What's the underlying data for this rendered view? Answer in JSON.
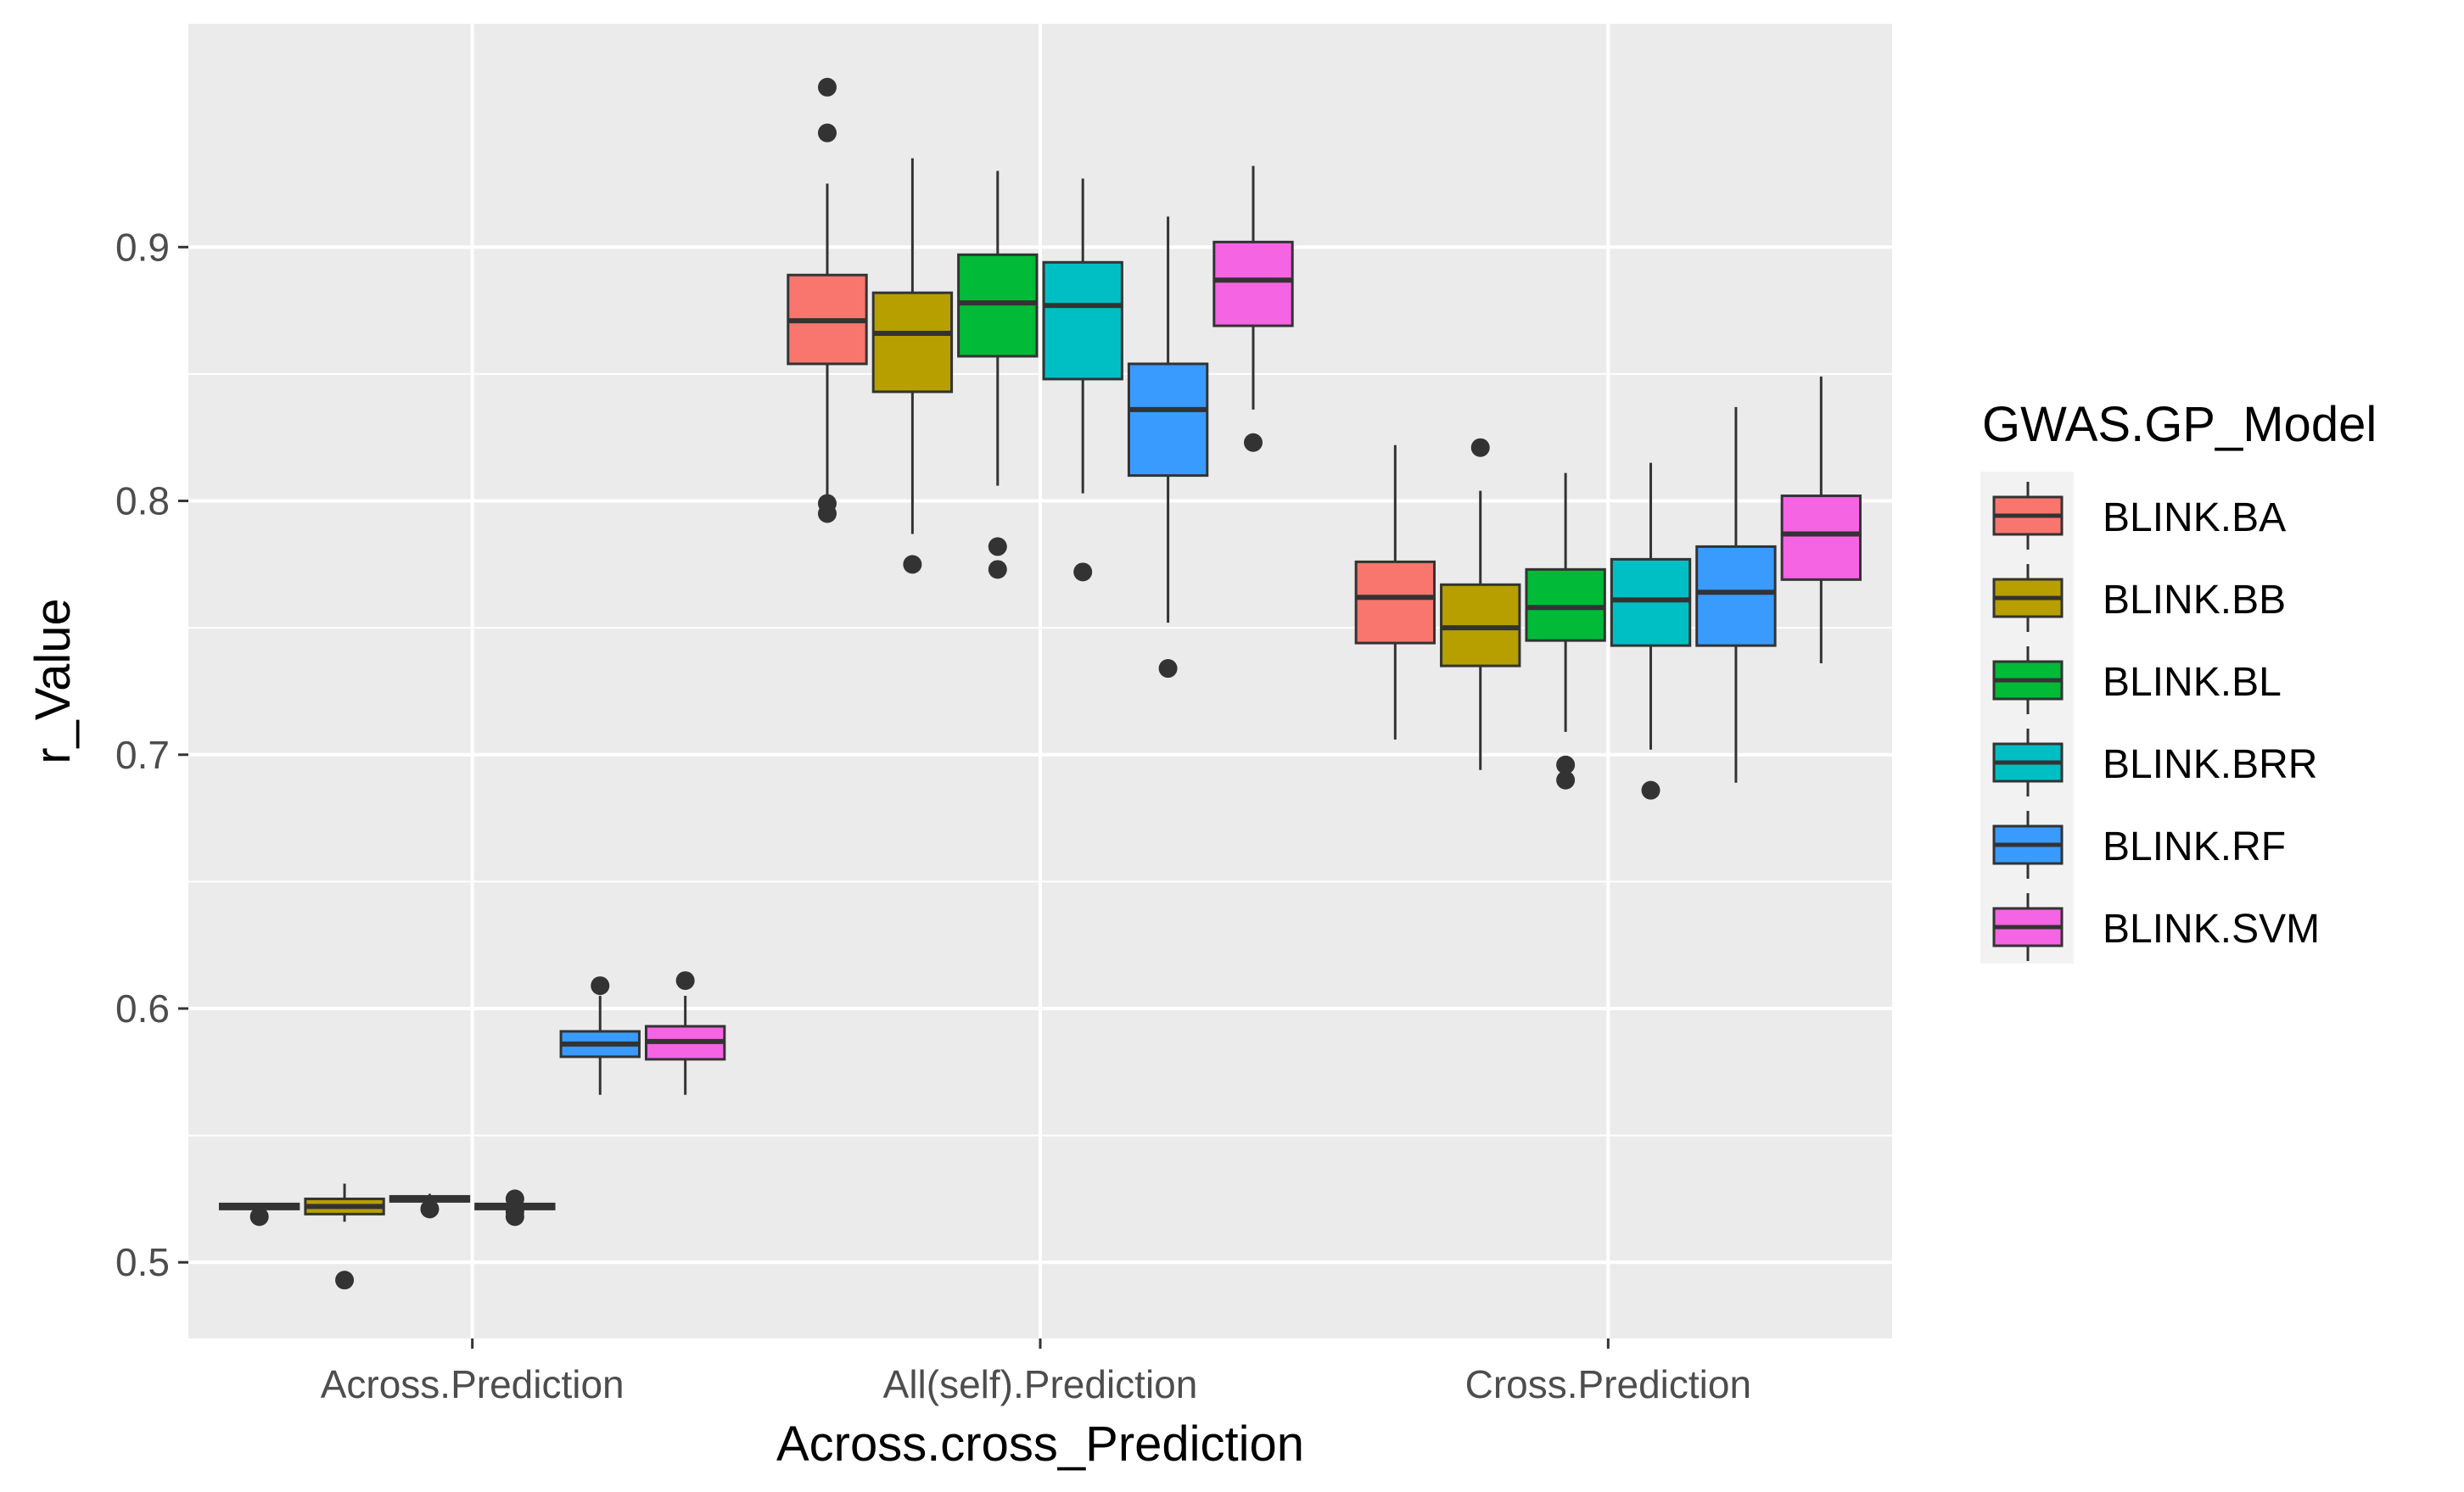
{
  "chart_data": {
    "type": "boxplot",
    "title": "",
    "xlabel": "Across.cross_Prediction",
    "ylabel": "r_Value",
    "ylim": [
      0.47,
      0.988
    ],
    "y_ticks": [
      0.5,
      0.6,
      0.7,
      0.8,
      0.9
    ],
    "y_tick_labels": [
      "0.5",
      "0.6",
      "0.7",
      "0.8",
      "0.9"
    ],
    "grid": true,
    "categories": [
      "Across.Prediction",
      "All(self).Prediction",
      "Cross.Prediction"
    ],
    "legend": {
      "title": "GWAS.GP_Model",
      "position": "right",
      "entries": [
        {
          "name": "BLINK.BA",
          "color": "#F8766D"
        },
        {
          "name": "BLINK.BB",
          "color": "#B79F00"
        },
        {
          "name": "BLINK.BL",
          "color": "#00BA38"
        },
        {
          "name": "BLINK.BRR",
          "color": "#00BFC4"
        },
        {
          "name": "BLINK.RF",
          "color": "#3A9BFF"
        },
        {
          "name": "BLINK.SVM",
          "color": "#F564E3"
        }
      ]
    },
    "series": [
      {
        "name": "BLINK.BA",
        "boxes": [
          {
            "whisker_low": 0.521,
            "q1": 0.521,
            "median": 0.522,
            "q3": 0.523,
            "whisker_high": 0.523,
            "outliers": [
              0.518
            ]
          },
          {
            "whisker_low": 0.802,
            "q1": 0.854,
            "median": 0.871,
            "q3": 0.889,
            "whisker_high": 0.925,
            "outliers": [
              0.963,
              0.945,
              0.799,
              0.795
            ]
          },
          {
            "whisker_low": 0.706,
            "q1": 0.744,
            "median": 0.762,
            "q3": 0.776,
            "whisker_high": 0.822,
            "outliers": []
          }
        ]
      },
      {
        "name": "BLINK.BB",
        "boxes": [
          {
            "whisker_low": 0.516,
            "q1": 0.519,
            "median": 0.522,
            "q3": 0.525,
            "whisker_high": 0.531,
            "outliers": [
              0.493
            ]
          },
          {
            "whisker_low": 0.787,
            "q1": 0.843,
            "median": 0.866,
            "q3": 0.882,
            "whisker_high": 0.935,
            "outliers": [
              0.775
            ]
          },
          {
            "whisker_low": 0.694,
            "q1": 0.735,
            "median": 0.75,
            "q3": 0.767,
            "whisker_high": 0.804,
            "outliers": [
              0.821
            ]
          }
        ]
      },
      {
        "name": "BLINK.BL",
        "boxes": [
          {
            "whisker_low": 0.524,
            "q1": 0.524,
            "median": 0.525,
            "q3": 0.526,
            "whisker_high": 0.527,
            "outliers": [
              0.521
            ]
          },
          {
            "whisker_low": 0.806,
            "q1": 0.857,
            "median": 0.878,
            "q3": 0.897,
            "whisker_high": 0.93,
            "outliers": [
              0.782,
              0.773
            ]
          },
          {
            "whisker_low": 0.709,
            "q1": 0.745,
            "median": 0.758,
            "q3": 0.773,
            "whisker_high": 0.811,
            "outliers": [
              0.696,
              0.69
            ]
          }
        ]
      },
      {
        "name": "BLINK.BRR",
        "boxes": [
          {
            "whisker_low": 0.521,
            "q1": 0.521,
            "median": 0.522,
            "q3": 0.523,
            "whisker_high": 0.524,
            "outliers": [
              0.525,
              0.52,
              0.518
            ]
          },
          {
            "whisker_low": 0.803,
            "q1": 0.848,
            "median": 0.877,
            "q3": 0.894,
            "whisker_high": 0.927,
            "outliers": [
              0.772
            ]
          },
          {
            "whisker_low": 0.702,
            "q1": 0.743,
            "median": 0.761,
            "q3": 0.777,
            "whisker_high": 0.815,
            "outliers": [
              0.686
            ]
          }
        ]
      },
      {
        "name": "BLINK.RF",
        "boxes": [
          {
            "whisker_low": 0.566,
            "q1": 0.581,
            "median": 0.586,
            "q3": 0.591,
            "whisker_high": 0.605,
            "outliers": [
              0.609
            ]
          },
          {
            "whisker_low": 0.752,
            "q1": 0.81,
            "median": 0.836,
            "q3": 0.854,
            "whisker_high": 0.912,
            "outliers": [
              0.734
            ]
          },
          {
            "whisker_low": 0.689,
            "q1": 0.743,
            "median": 0.764,
            "q3": 0.782,
            "whisker_high": 0.837,
            "outliers": []
          }
        ]
      },
      {
        "name": "BLINK.SVM",
        "boxes": [
          {
            "whisker_low": 0.566,
            "q1": 0.58,
            "median": 0.587,
            "q3": 0.593,
            "whisker_high": 0.605,
            "outliers": [
              0.611
            ]
          },
          {
            "whisker_low": 0.836,
            "q1": 0.869,
            "median": 0.887,
            "q3": 0.902,
            "whisker_high": 0.932,
            "outliers": [
              0.823
            ]
          },
          {
            "whisker_low": 0.736,
            "q1": 0.769,
            "median": 0.787,
            "q3": 0.802,
            "whisker_high": 0.849,
            "outliers": []
          }
        ]
      }
    ]
  }
}
